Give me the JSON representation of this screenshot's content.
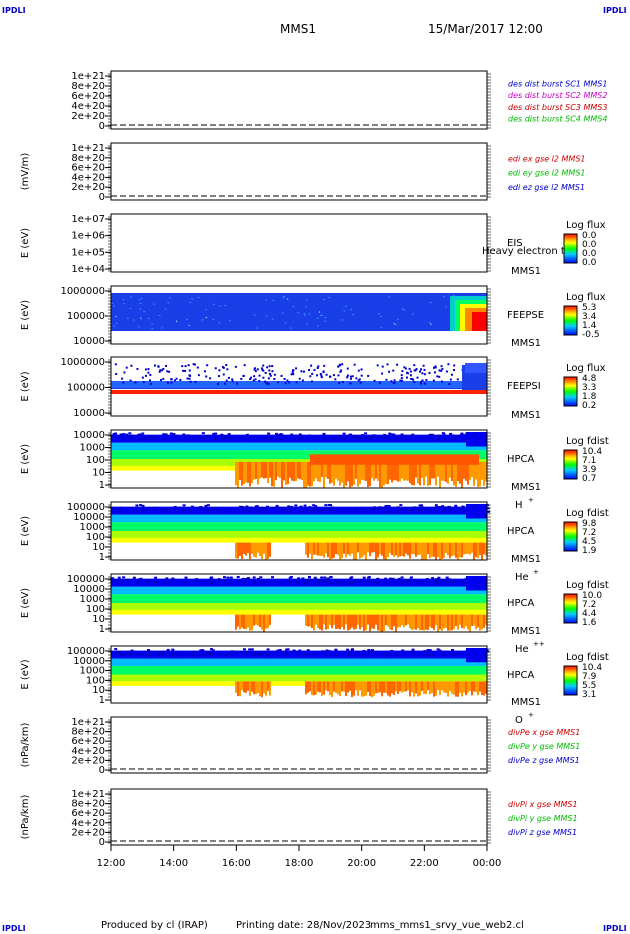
{
  "corner_label": "IPDLI",
  "header": {
    "spacecraft": "MMS1",
    "datetime": "15/Mar/2017 12:00"
  },
  "footer": {
    "produced_by": "Produced by cl (IRAP)",
    "printing_date": "Printing date: 28/Nov/2023",
    "file": "mms_mms1_srvy_vue_web2.cl"
  },
  "colors": {
    "mms1": "#0000cc",
    "mms2": "#cc00cc",
    "mms3": "#cc0000",
    "mms4": "#00bb00"
  },
  "chart_data": [
    {
      "type": "line",
      "panel": "des",
      "ylabel": "",
      "yticks": [
        "1e+21",
        "8e+20",
        "6e+20",
        "4e+20",
        "2e+20",
        "0"
      ],
      "series": [
        {
          "name": "des dist burst SC1 MMS1",
          "color": "#0000cc"
        },
        {
          "name": "des dist burst SC2 MMS2",
          "color": "#cc00cc"
        },
        {
          "name": "des dist burst SC3 MMS3",
          "color": "#cc0000"
        },
        {
          "name": "des dist burst SC4 MMS4",
          "color": "#00bb00"
        }
      ]
    },
    {
      "type": "line",
      "panel": "edi",
      "ylabel": "(mV/m)",
      "yticks": [
        "1e+21",
        "8e+20",
        "6e+20",
        "4e+20",
        "2e+20",
        "0"
      ],
      "series": [
        {
          "name": "edi ex gse l2 MMS1",
          "color": "#cc0000"
        },
        {
          "name": "edi ey gse l2 MMS1",
          "color": "#00bb00"
        },
        {
          "name": "edi ez gse l2 MMS1",
          "color": "#0000cc"
        }
      ]
    },
    {
      "type": "heatmap",
      "panel": "eis",
      "ylabel": "E (eV)",
      "yticks": [
        "1e+07",
        "1e+06",
        "1e+05",
        "1e+04"
      ],
      "instrument": "EIS",
      "sc": "MMS1",
      "overlay": "Heavy electron to",
      "cbar_title": "Log flux",
      "cbar_ticks": [
        "0.0",
        "0.0",
        "0.0",
        "0.0"
      ],
      "fill": "empty"
    },
    {
      "type": "heatmap",
      "panel": "feepse",
      "ylabel": "E (eV)",
      "yticks": [
        "1000000",
        "100000",
        "10000"
      ],
      "instrument": "FEEPSE",
      "sc": "MMS1",
      "cbar_title": "Log flux",
      "cbar_ticks": [
        "5.3",
        "3.4",
        "1.4",
        "-0.5"
      ],
      "fill": "feepse"
    },
    {
      "type": "heatmap",
      "panel": "feepsi",
      "ylabel": "E (eV)",
      "yticks": [
        "1000000",
        "100000",
        "10000"
      ],
      "instrument": "FEEPSI",
      "sc": "MMS1",
      "cbar_title": "Log flux",
      "cbar_ticks": [
        "4.8",
        "3.3",
        "1.8",
        "0.2"
      ],
      "fill": "feepsi"
    },
    {
      "type": "heatmap",
      "panel": "hpca_h",
      "ylabel": "E (eV)",
      "yticks": [
        "10000",
        "1000",
        "100",
        "10",
        "1"
      ],
      "instrument": "HPCA",
      "sc": "MMS1",
      "species": "H",
      "species_sup": "+",
      "cbar_title": "Log fdist",
      "cbar_ticks": [
        "10.4",
        "7.1",
        "3.9",
        "0.7"
      ],
      "fill": "hpca_h"
    },
    {
      "type": "heatmap",
      "panel": "hpca_he",
      "ylabel": "E (eV)",
      "yticks": [
        "100000",
        "10000",
        "1000",
        "100",
        "10",
        "1"
      ],
      "instrument": "HPCA",
      "sc": "MMS1",
      "species": "He",
      "species_sup": "+",
      "cbar_title": "Log fdist",
      "cbar_ticks": [
        "9.8",
        "7.2",
        "4.5",
        "1.9"
      ],
      "fill": "hpca_he"
    },
    {
      "type": "heatmap",
      "panel": "hpca_hepp",
      "ylabel": "E (eV)",
      "yticks": [
        "100000",
        "10000",
        "1000",
        "100",
        "10",
        "1"
      ],
      "instrument": "HPCA",
      "sc": "MMS1",
      "species": "He",
      "species_sup": "++",
      "cbar_title": "Log fdist",
      "cbar_ticks": [
        "10.0",
        "7.2",
        "4.4",
        "1.6"
      ],
      "fill": "hpca_hepp"
    },
    {
      "type": "heatmap",
      "panel": "hpca_o",
      "ylabel": "E (eV)",
      "yticks": [
        "100000",
        "10000",
        "1000",
        "100",
        "10",
        "1"
      ],
      "instrument": "HPCA",
      "sc": "MMS1",
      "species": "O",
      "species_sup": "+",
      "cbar_title": "Log fdist",
      "cbar_ticks": [
        "10.4",
        "7.9",
        "5.5",
        "3.1"
      ],
      "fill": "hpca_o"
    },
    {
      "type": "line",
      "panel": "divpe",
      "ylabel": "(nPa/km)",
      "yticks": [
        "1e+21",
        "8e+20",
        "6e+20",
        "4e+20",
        "2e+20",
        "0"
      ],
      "series": [
        {
          "name": "divPe x gse MMS1",
          "color": "#cc0000"
        },
        {
          "name": "divPe y gse MMS1",
          "color": "#00bb00"
        },
        {
          "name": "divPe z gse MMS1",
          "color": "#0000cc"
        }
      ]
    },
    {
      "type": "line",
      "panel": "divpi",
      "ylabel": "(nPa/km)",
      "yticks": [
        "1e+21",
        "8e+20",
        "6e+20",
        "4e+20",
        "2e+20",
        "0"
      ],
      "series": [
        {
          "name": "divPi x gse MMS1",
          "color": "#cc0000"
        },
        {
          "name": "divPi y gse MMS1",
          "color": "#00bb00"
        },
        {
          "name": "divPi z gse MMS1",
          "color": "#0000cc"
        }
      ]
    }
  ],
  "xaxis": {
    "ticks": [
      "12:00",
      "14:00",
      "16:00",
      "18:00",
      "20:00",
      "22:00",
      "00:00"
    ]
  }
}
